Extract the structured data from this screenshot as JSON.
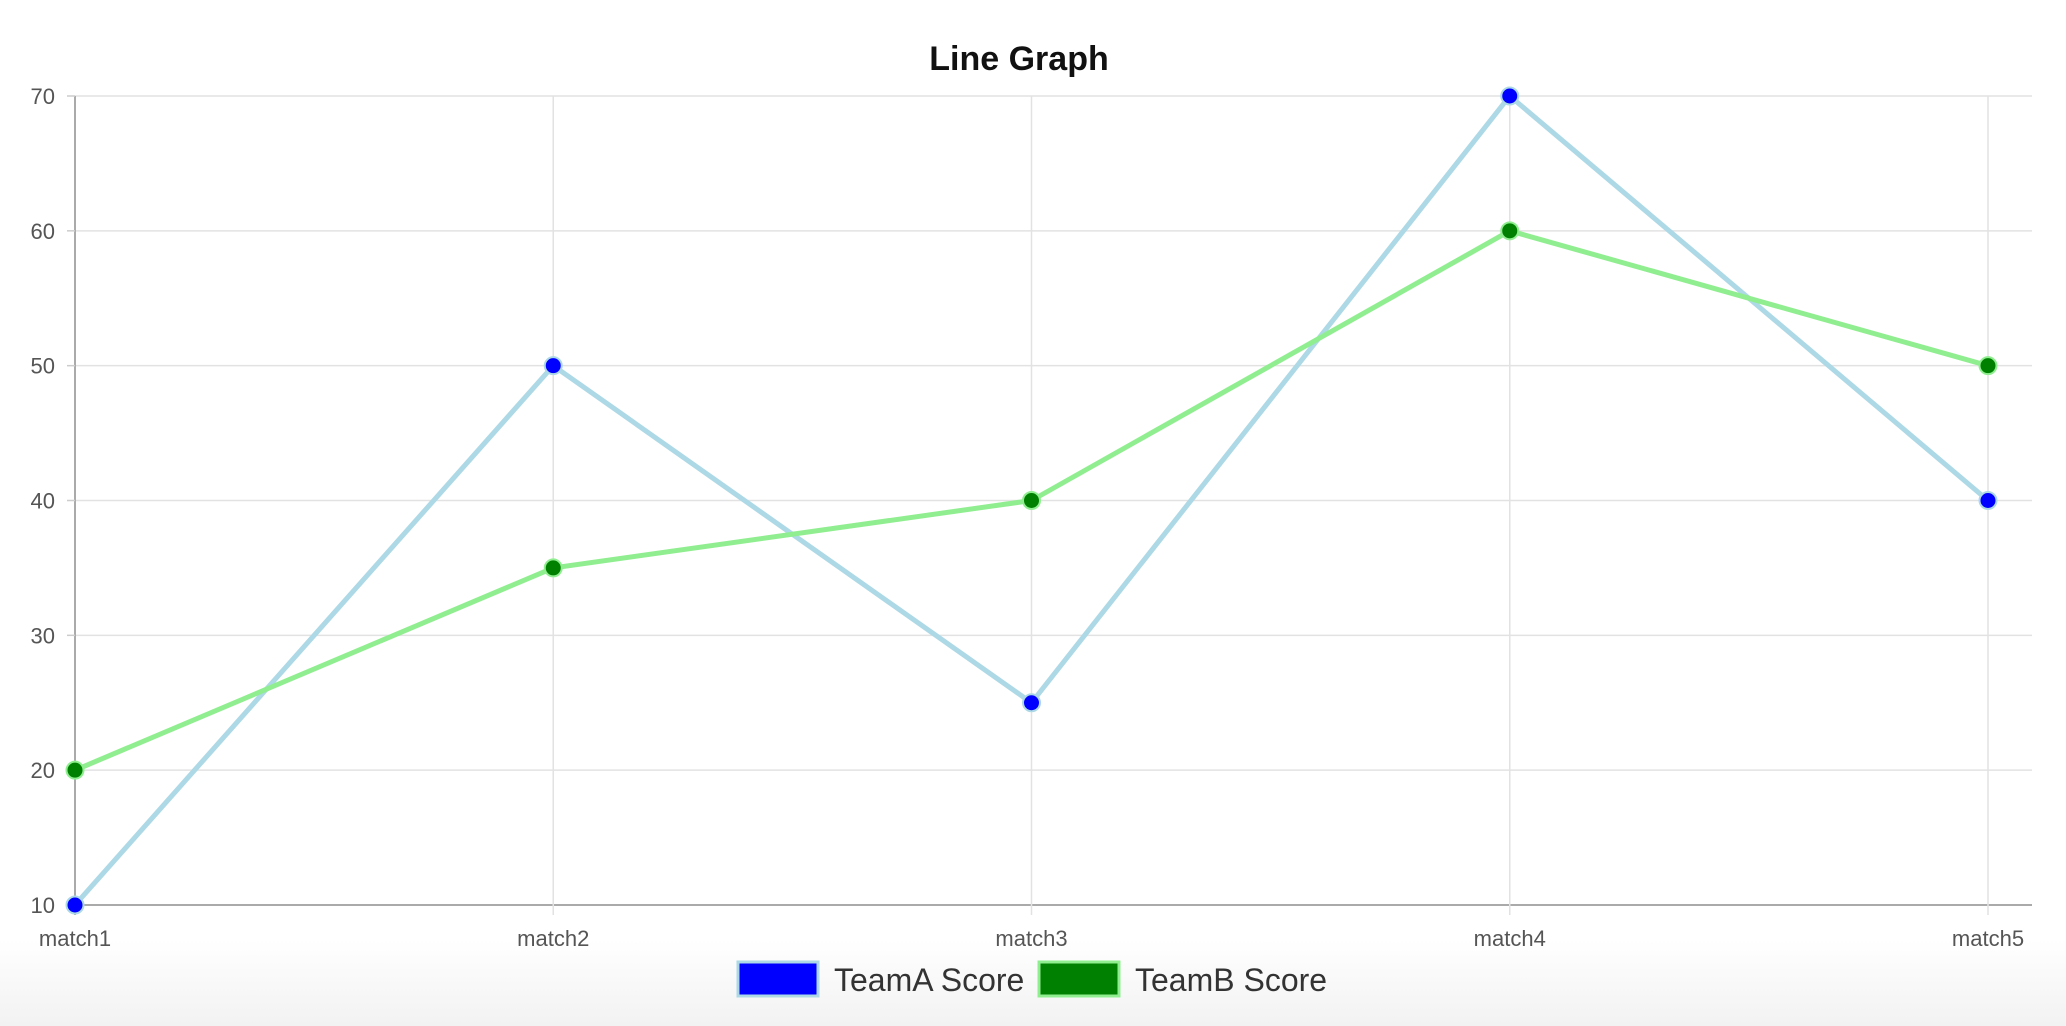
{
  "chart_data": {
    "type": "line",
    "title": "Line Graph",
    "xlabel": "",
    "ylabel": "",
    "categories": [
      "match1",
      "match2",
      "match3",
      "match4",
      "match5"
    ],
    "ylim": [
      10,
      70
    ],
    "yticks": [
      10,
      20,
      30,
      40,
      50,
      60,
      70
    ],
    "grid": true,
    "legend_position": "bottom",
    "series": [
      {
        "name": "TeamA Score",
        "values": [
          10,
          50,
          25,
          70,
          40
        ],
        "line_color": "#add8e6",
        "point_color": "#0000ff"
      },
      {
        "name": "TeamB Score",
        "values": [
          20,
          35,
          40,
          60,
          50
        ],
        "line_color": "#90ee90",
        "point_color": "#008000"
      }
    ]
  }
}
